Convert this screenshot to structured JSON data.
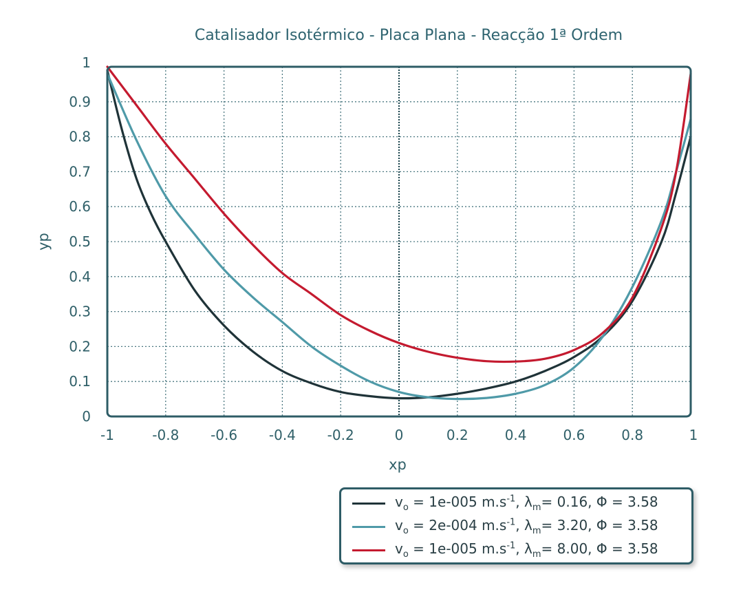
{
  "chart_data": {
    "type": "line",
    "title": "Catalisador Isotérmico - Placa Plana - Reacção 1ª Ordem",
    "xlabel": "xp",
    "ylabel": "yp",
    "xlim": [
      -1,
      1
    ],
    "ylim": [
      0,
      1
    ],
    "grid": true,
    "x_tick_labels": [
      "-1",
      "-0.8",
      "-0.6",
      "-0.4",
      "-0.2",
      "0",
      "0.2",
      "0.4",
      "0.6",
      "0.8",
      "1"
    ],
    "y_tick_labels": [
      "0",
      "0.1",
      "0.2",
      "0.3",
      "0.4",
      "0.5",
      "0.6",
      "0.7",
      "0.8",
      "0.9",
      "1"
    ],
    "legend_position": "bottom-right, below plot",
    "series": [
      {
        "name": "vo = 1e-005 m.s-1, λm= 0.16, Φ = 3.58",
        "color": "#1f3338",
        "x": [
          -1,
          -0.95,
          -0.9,
          -0.85,
          -0.8,
          -0.7,
          -0.6,
          -0.5,
          -0.4,
          -0.3,
          -0.2,
          -0.1,
          0,
          0.1,
          0.2,
          0.3,
          0.4,
          0.5,
          0.6,
          0.7,
          0.8,
          0.9,
          0.95,
          1
        ],
        "y": [
          0.99,
          0.82,
          0.68,
          0.58,
          0.5,
          0.36,
          0.26,
          0.185,
          0.13,
          0.095,
          0.07,
          0.058,
          0.052,
          0.055,
          0.065,
          0.08,
          0.1,
          0.13,
          0.17,
          0.23,
          0.33,
          0.5,
          0.64,
          0.8
        ]
      },
      {
        "name": "vo = 2e-004 m.s-1, λm= 3.20, Φ = 3.58",
        "color": "#4f9aa8",
        "x": [
          -1,
          -0.9,
          -0.8,
          -0.7,
          -0.6,
          -0.5,
          -0.4,
          -0.3,
          -0.2,
          -0.1,
          0,
          0.1,
          0.2,
          0.3,
          0.4,
          0.5,
          0.6,
          0.7,
          0.8,
          0.9,
          0.95,
          1
        ],
        "y": [
          0.98,
          0.79,
          0.63,
          0.52,
          0.42,
          0.34,
          0.27,
          0.2,
          0.145,
          0.1,
          0.07,
          0.055,
          0.05,
          0.053,
          0.065,
          0.09,
          0.14,
          0.23,
          0.37,
          0.56,
          0.7,
          0.85
        ]
      },
      {
        "name": "vo = 1e-005 m.s-1, λm= 8.00, Φ = 3.58",
        "color": "#c41a2f",
        "x": [
          -1,
          -0.9,
          -0.8,
          -0.7,
          -0.6,
          -0.5,
          -0.4,
          -0.3,
          -0.2,
          -0.1,
          0,
          0.1,
          0.2,
          0.3,
          0.4,
          0.5,
          0.6,
          0.7,
          0.8,
          0.9,
          0.95,
          1
        ],
        "y": [
          1.0,
          0.89,
          0.78,
          0.68,
          0.58,
          0.49,
          0.41,
          0.35,
          0.29,
          0.245,
          0.21,
          0.185,
          0.168,
          0.158,
          0.157,
          0.165,
          0.19,
          0.24,
          0.34,
          0.54,
          0.7,
          0.98
        ]
      }
    ]
  },
  "legend": {
    "items": [
      {
        "v": "v",
        "v_sub": "o",
        "eq1": " = 1e-005 m.s",
        "unit_sup": "-1",
        "comma": ", ",
        "lambda": "λ",
        "lambda_sub": "m",
        "rest": "= 0.16, Φ = 3.58"
      },
      {
        "v": "v",
        "v_sub": "o",
        "eq1": " = 2e-004 m.s",
        "unit_sup": "-1",
        "comma": ", ",
        "lambda": "λ",
        "lambda_sub": "m",
        "rest": "= 3.20, Φ = 3.58"
      },
      {
        "v": "v",
        "v_sub": "o",
        "eq1": " = 1e-005 m.s",
        "unit_sup": "-1",
        "comma": ", ",
        "lambda": "λ",
        "lambda_sub": "m",
        "rest": "= 8.00, Φ = 3.58"
      }
    ]
  }
}
